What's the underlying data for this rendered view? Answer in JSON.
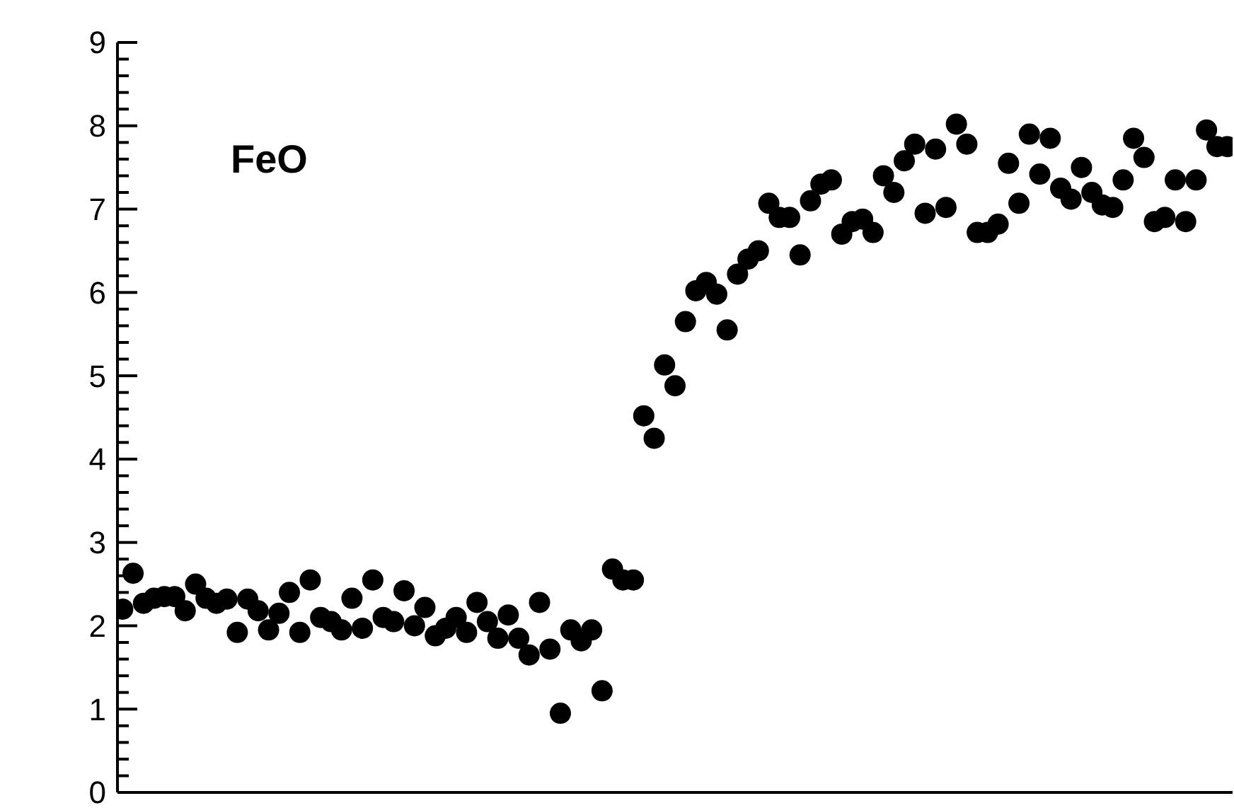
{
  "chart_data": {
    "type": "scatter",
    "title": "FeO",
    "marker": "circle",
    "tick_labels": "y",
    "categories": [
      null,
      null,
      null,
      null,
      null,
      null,
      null,
      null,
      null,
      null,
      null,
      null,
      null,
      null,
      null,
      null,
      null,
      null,
      null,
      null,
      null,
      null,
      null,
      null,
      null,
      null,
      null,
      null,
      null,
      null,
      null,
      null,
      null,
      null,
      null,
      null,
      null,
      null,
      null,
      null,
      null,
      null,
      null,
      null,
      null,
      null,
      null,
      null,
      null,
      null,
      null,
      null,
      null,
      null,
      null,
      null,
      null,
      null,
      null,
      null,
      null,
      null,
      null,
      null,
      null,
      null,
      null,
      null,
      null,
      null,
      null,
      null,
      null,
      null,
      null,
      null,
      null,
      null,
      null,
      null,
      null,
      null,
      null,
      null,
      null,
      null,
      null,
      null,
      null,
      null,
      null,
      null,
      null,
      null,
      null,
      null,
      null,
      null,
      null,
      null,
      null,
      null,
      null,
      null,
      null,
      null,
      null
    ],
    "ylim": [
      0,
      9
    ],
    "yticks": [
      0,
      {
        "value": 0.2,
        "label": null
      },
      {
        "value": 0.4,
        "label": null
      },
      {
        "value": 0.6,
        "label": null
      },
      {
        "value": 0.8,
        "label": null
      },
      1,
      {
        "value": 1.2,
        "label": null
      },
      {
        "value": 1.4,
        "label": null
      },
      {
        "value": 1.6,
        "label": null
      },
      {
        "value": 1.8,
        "label": null
      },
      2,
      {
        "value": 2.2,
        "label": null
      },
      {
        "value": 2.4,
        "label": null
      },
      {
        "value": 2.6,
        "label": null
      },
      {
        "value": 2.8,
        "label": null
      },
      3,
      {
        "value": 3.2,
        "label": null
      },
      {
        "value": 3.4,
        "label": null
      },
      {
        "value": 3.6,
        "label": null
      },
      {
        "value": 3.8,
        "label": null
      },
      4,
      {
        "value": 4.2,
        "label": null
      },
      {
        "value": 4.4,
        "label": null
      },
      {
        "value": 4.6,
        "label": null
      },
      {
        "value": 4.8,
        "label": null
      },
      5,
      {
        "value": 5.2,
        "label": null
      },
      {
        "value": 5.4,
        "label": null
      },
      {
        "value": 5.6,
        "label": null
      },
      {
        "value": 5.8,
        "label": null
      },
      6,
      {
        "value": 6.2,
        "label": null
      },
      {
        "value": 6.4,
        "label": null
      },
      {
        "value": 6.6,
        "label": null
      },
      {
        "value": 6.8,
        "label": null
      },
      7,
      {
        "value": 7.2,
        "label": null
      },
      {
        "value": 7.4,
        "label": null
      },
      {
        "value": 7.6,
        "label": null
      },
      {
        "value": 7.8,
        "label": null
      },
      8,
      {
        "value": 8.2,
        "label": null
      },
      {
        "value": 8.4,
        "label": null
      },
      {
        "value": 8.6,
        "label": null
      },
      {
        "value": 8.8,
        "label": null
      },
      9
    ],
    "series": [
      {
        "color": "#000000",
        "values": [
          2.2,
          2.63,
          2.27,
          2.33,
          2.35,
          2.35,
          2.18,
          2.5,
          2.33,
          2.27,
          2.32,
          1.92,
          2.32,
          2.18,
          1.95,
          2.15,
          2.4,
          1.92,
          2.55,
          2.1,
          2.05,
          1.95,
          2.33,
          1.97,
          2.55,
          2.1,
          2.05,
          2.42,
          2.0,
          2.22,
          1.88,
          1.97,
          2.1,
          1.92,
          2.28,
          2.05,
          1.85,
          2.13,
          1.85,
          1.65,
          2.28,
          1.72,
          0.95,
          1.95,
          1.82,
          1.95,
          1.22,
          2.68,
          2.55,
          2.55,
          4.52,
          4.25,
          5.13,
          4.88,
          5.65,
          6.02,
          6.12,
          5.98,
          5.55,
          6.22,
          6.4,
          6.5,
          7.07,
          6.9,
          6.9,
          6.45,
          7.1,
          7.3,
          7.35,
          6.7,
          6.85,
          6.88,
          6.72,
          7.4,
          7.2,
          7.58,
          7.78,
          6.95,
          7.72,
          7.02,
          8.02,
          7.78,
          6.72,
          6.72,
          6.82,
          7.55,
          7.07,
          7.9,
          7.42,
          7.85,
          7.25,
          7.12,
          7.5,
          7.2,
          7.05,
          7.02,
          7.35,
          7.85,
          7.62,
          6.85,
          6.9,
          7.35,
          6.85,
          7.35,
          7.95,
          7.75,
          7.75
        ]
      }
    ]
  }
}
